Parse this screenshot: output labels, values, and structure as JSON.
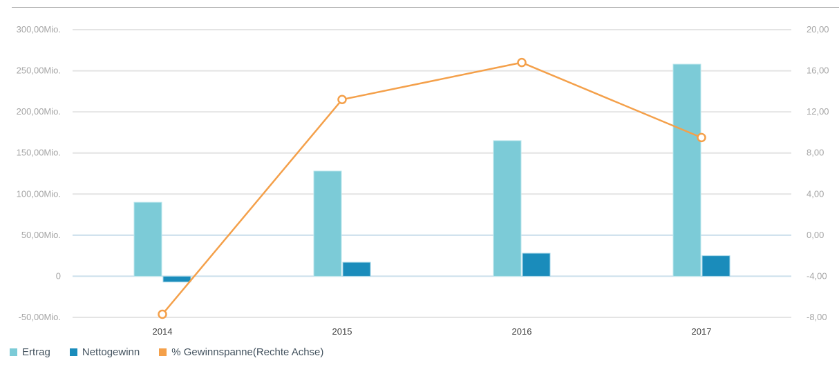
{
  "chart_data": {
    "type": "combo_bar_line",
    "title": "",
    "categories": [
      "2014",
      "2015",
      "2016",
      "2017"
    ],
    "series": [
      {
        "name": "Ertrag",
        "type": "bar",
        "axis": "left",
        "color": "#7CCBD7",
        "border": "#bde7ed",
        "values": [
          90,
          128,
          165,
          258
        ]
      },
      {
        "name": "Nettogewinn",
        "type": "bar",
        "axis": "left",
        "color": "#1A8CBB",
        "border": "#a3d6e8",
        "values": [
          -7,
          17,
          28,
          25
        ]
      },
      {
        "name": "% Gewinnspanne(Rechte Achse)",
        "type": "line",
        "axis": "right",
        "color": "#F4A04A",
        "values": [
          -7.7,
          13.2,
          16.8,
          9.5
        ]
      }
    ],
    "left_axis": {
      "min": -50,
      "max": 300,
      "unit": "Mio.",
      "ticks": [
        300,
        250,
        200,
        150,
        100,
        50,
        0,
        -50
      ],
      "labels": [
        "300,00Mio.",
        "250,00Mio.",
        "200,00Mio.",
        "150,00Mio.",
        "100,00Mio.",
        "50,00Mio.",
        "0",
        "-50,00Mio."
      ]
    },
    "right_axis": {
      "min": -8,
      "max": 20,
      "ticks": [
        20,
        16,
        12,
        8,
        4,
        0,
        -4,
        -8
      ],
      "labels": [
        "20,00",
        "16,00",
        "12,00",
        "8,00",
        "4,00",
        "0,00",
        "-4,00",
        "-8,00"
      ]
    },
    "grid": true,
    "legend_position": "bottom",
    "colors": {
      "grid": "#e4e4e4",
      "grid_zero": "#cbdfeb",
      "marker_fill": "#ffffff",
      "axis_text": "#a5a5a5",
      "category_text": "#404040",
      "legend_text": "#44535f",
      "divider": "#969696"
    }
  }
}
